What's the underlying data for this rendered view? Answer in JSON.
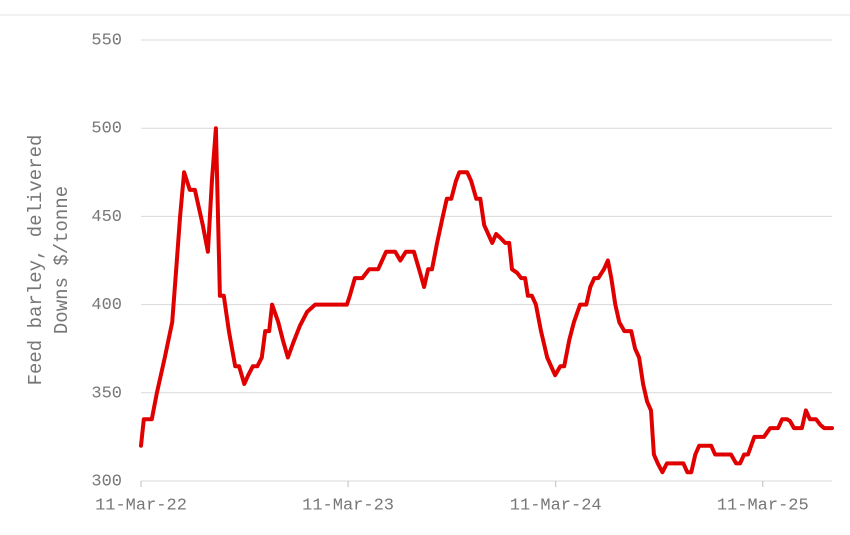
{
  "chart_data": {
    "type": "line",
    "y_label": [
      "Feed barley, delivered",
      "Downs $/tonne"
    ],
    "x": [
      "2022-03-11",
      "2022-03-16",
      "2022-03-30",
      "2022-04-08",
      "2022-04-22",
      "2022-05-05",
      "2022-05-12",
      "2022-05-19",
      "2022-05-26",
      "2022-06-05",
      "2022-06-14",
      "2022-06-28",
      "2022-07-07",
      "2022-07-14",
      "2022-07-21",
      "2022-07-28",
      "2022-08-04",
      "2022-08-13",
      "2022-08-24",
      "2022-08-31",
      "2022-09-09",
      "2022-09-16",
      "2022-09-24",
      "2022-10-02",
      "2022-10-10",
      "2022-10-16",
      "2022-10-23",
      "2022-10-28",
      "2022-11-08",
      "2022-11-16",
      "2022-11-25",
      "2022-12-04",
      "2022-12-16",
      "2022-12-29",
      "2023-01-12",
      "2023-02-07",
      "2023-03-09",
      "2023-03-14",
      "2023-03-23",
      "2023-04-05",
      "2023-04-17",
      "2023-05-03",
      "2023-05-17",
      "2023-06-02",
      "2023-06-11",
      "2023-06-21",
      "2023-07-05",
      "2023-07-16",
      "2023-07-23",
      "2023-07-30",
      "2023-08-06",
      "2023-08-15",
      "2023-08-25",
      "2023-09-01",
      "2023-09-09",
      "2023-09-17",
      "2023-09-23",
      "2023-10-07",
      "2023-10-14",
      "2023-10-23",
      "2023-10-30",
      "2023-11-06",
      "2023-11-13",
      "2023-11-20",
      "2023-11-27",
      "2023-12-04",
      "2023-12-13",
      "2023-12-20",
      "2023-12-25",
      "2024-01-03",
      "2024-01-10",
      "2024-01-17",
      "2024-01-22",
      "2024-01-29",
      "2024-02-05",
      "2024-02-14",
      "2024-02-25",
      "2024-03-10",
      "2024-03-19",
      "2024-03-26",
      "2024-04-04",
      "2024-04-12",
      "2024-04-23",
      "2024-05-04",
      "2024-05-11",
      "2024-05-18",
      "2024-05-25",
      "2024-06-04",
      "2024-06-11",
      "2024-06-17",
      "2024-06-24",
      "2024-07-01",
      "2024-07-10",
      "2024-07-22",
      "2024-07-29",
      "2024-08-05",
      "2024-08-12",
      "2024-08-19",
      "2024-08-26",
      "2024-08-31",
      "2024-09-07",
      "2024-09-15",
      "2024-09-23",
      "2024-10-22",
      "2024-10-29",
      "2024-11-05",
      "2024-11-12",
      "2024-11-19",
      "2024-12-10",
      "2024-12-17",
      "2025-01-14",
      "2025-01-23",
      "2025-01-30",
      "2025-02-06",
      "2025-02-13",
      "2025-02-24",
      "2025-03-13",
      "2025-03-24",
      "2025-04-07",
      "2025-04-14",
      "2025-04-23",
      "2025-04-28",
      "2025-05-05",
      "2025-05-19",
      "2025-05-26",
      "2025-06-02",
      "2025-06-13",
      "2025-06-20",
      "2025-06-27",
      "2025-07-11"
    ],
    "series": [
      {
        "color": "#e00000",
        "values": [
          320,
          335,
          335,
          350,
          370,
          390,
          420,
          450,
          475,
          465,
          465,
          445,
          430,
          470,
          500,
          405,
          405,
          385,
          365,
          365,
          355,
          360,
          365,
          365,
          370,
          385,
          385,
          400,
          390,
          380,
          370,
          378,
          388,
          396,
          400,
          400,
          400,
          405,
          415,
          415,
          420,
          420,
          430,
          430,
          425,
          430,
          430,
          418,
          410,
          420,
          420,
          435,
          450,
          460,
          460,
          470,
          475,
          475,
          470,
          460,
          460,
          445,
          440,
          435,
          440,
          438,
          435,
          435,
          420,
          418,
          415,
          415,
          405,
          405,
          400,
          385,
          370,
          360,
          365,
          365,
          380,
          390,
          400,
          400,
          410,
          415,
          415,
          420,
          425,
          415,
          400,
          390,
          385,
          385,
          375,
          370,
          355,
          345,
          340,
          315,
          310,
          305,
          310,
          310,
          305,
          305,
          315,
          320,
          320,
          315,
          315,
          310,
          310,
          315,
          315,
          325,
          325,
          330,
          330,
          335,
          335,
          334,
          330,
          330,
          340,
          335,
          335,
          332,
          330,
          330
        ]
      }
    ],
    "xlim": [
      "2022-03-11",
      "2025-07-11"
    ],
    "xticks": [
      {
        "value": "2022-03-11",
        "label": "11-Mar-22"
      },
      {
        "value": "2023-03-11",
        "label": "11-Mar-23"
      },
      {
        "value": "2024-03-11",
        "label": "11-Mar-24"
      },
      {
        "value": "2025-03-11",
        "label": "11-Mar-25"
      }
    ],
    "ylim": [
      300,
      550
    ],
    "yticks": [
      300,
      350,
      400,
      450,
      500,
      550
    ],
    "grid": true
  }
}
